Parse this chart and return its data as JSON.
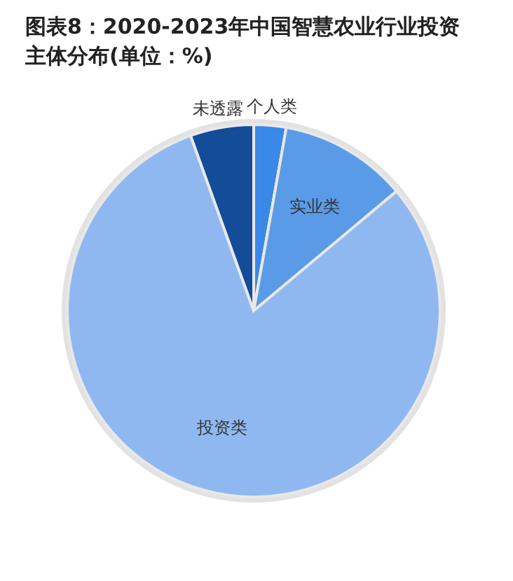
{
  "chart_data": {
    "type": "pie",
    "title": "图表8：2020-2023年中国智慧农业行业投资主体分布(单位：%)",
    "categories": [
      "个人类",
      "实业类",
      "投资类",
      "未透露"
    ],
    "values": [
      2.8,
      11.1,
      80.6,
      5.5
    ],
    "colors": [
      "#3a88e8",
      "#5a9be8",
      "#8fb8f0",
      "#134c98"
    ]
  }
}
